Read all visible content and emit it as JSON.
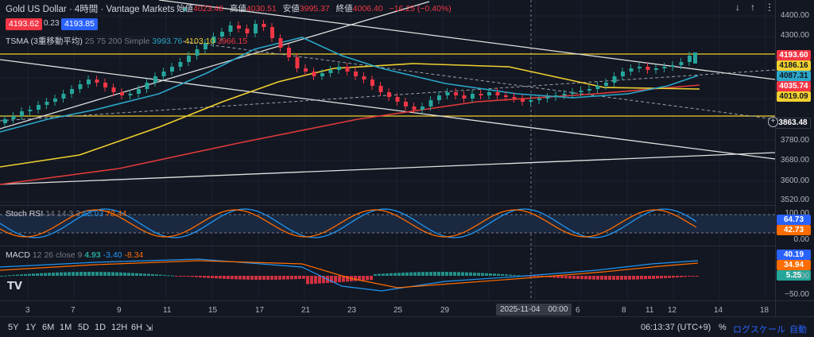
{
  "header": {
    "title": "Gold US Dollar · 4時間 · Vantage Markets",
    "ohlc": [
      {
        "label": "始値",
        "value": "4023.48"
      },
      {
        "label": "高値",
        "value": "4030.51"
      },
      {
        "label": "安値",
        "value": "3995.37"
      },
      {
        "label": "終値",
        "value": "4006.40"
      },
      {
        "label": "",
        "value": "−16.25 (−0.40%)"
      }
    ],
    "sell_price": "4193.62",
    "spread": "0.23",
    "buy_price": "4193.85"
  },
  "tsma": {
    "name": "TSMA (3重移動平均)",
    "params": "25 75 200 Simple",
    "v1": "3993.76",
    "v2": "4103.10",
    "v3": "3966.15"
  },
  "stoch": {
    "name": "Stoch RSI",
    "params": "14 14 3 3",
    "k": "62.03",
    "d": "73.44"
  },
  "macd": {
    "name": "MACD",
    "params": "12 26 close 9",
    "hist": "4.93",
    "macd": "-3.40",
    "signal": "-8.34"
  },
  "price_axis": [
    "4400.00",
    "4300.00",
    "3780.00",
    "3680.00",
    "3600.00",
    "3520.00"
  ],
  "price_tags": {
    "current": "4193.60",
    "level1": "4186.16",
    "ma25": "4087.31",
    "ma200": "4035.74",
    "ma75": "4019.09",
    "crosshair": "3863.48"
  },
  "stoch_axis": [
    "100.00",
    "0.00"
  ],
  "stoch_tags": {
    "k": "64.73",
    "d": "42.73"
  },
  "macd_axis": [
    "0.00",
    "−50.00"
  ],
  "macd_tags": {
    "macd": "40.19",
    "signal": "34.94",
    "hist": "5.25"
  },
  "x_axis": [
    "3",
    "7",
    "9",
    "11",
    "15",
    "17",
    "21",
    "23",
    "25",
    "29",
    "6",
    "8",
    "11",
    "12",
    "14",
    "18"
  ],
  "x_cursor_label": "2025-11-04　00:00",
  "bottom_bar": {
    "ranges": [
      "5Y",
      "1Y",
      "6M",
      "1M",
      "5D",
      "1D",
      "12H",
      "6H"
    ],
    "time": "06:13:37 (UTC+9)",
    "percent": "%",
    "log_scale": "ログスケール",
    "auto": "自動"
  },
  "colors": {
    "bg": "#131722",
    "bull": "#26a69a",
    "bear": "#f23645",
    "ma25": "#2aa7c9",
    "ma75": "#f0d030",
    "ma200": "#e03a3a"
  }
}
